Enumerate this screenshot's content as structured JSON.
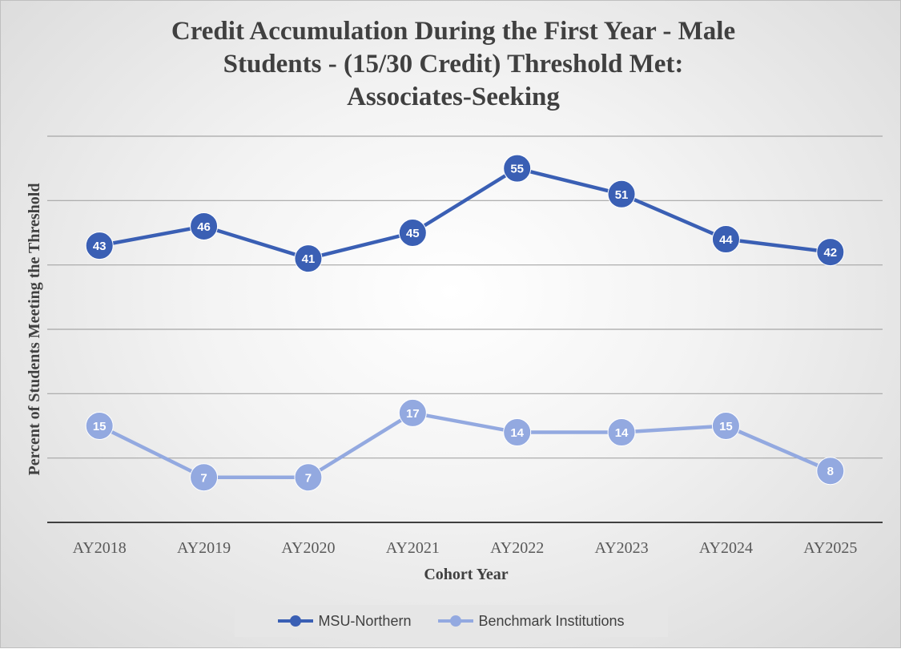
{
  "chart_data": {
    "type": "line",
    "title_lines": [
      "Credit Accumulation During the First Year - Male",
      "Students - (15/30 Credit) Threshold Met:",
      "Associates-Seeking"
    ],
    "xlabel": "Cohort Year",
    "ylabel": "Percent of Students Meeting the Threshold",
    "categories": [
      "AY2018",
      "AY2019",
      "AY2020",
      "AY2021",
      "AY2022",
      "AY2023",
      "AY2024",
      "AY2025"
    ],
    "ylim": [
      0,
      60
    ],
    "y_gridlines": [
      10,
      20,
      30,
      40,
      50,
      60
    ],
    "y_tick_labels_shown": false,
    "grid": true,
    "legend_position": "bottom",
    "series": [
      {
        "name": "MSU-Northern",
        "values": [
          43,
          46,
          41,
          45,
          55,
          51,
          44,
          42
        ],
        "color": "#3a5fb4"
      },
      {
        "name": "Benchmark Institutions",
        "values": [
          15,
          7,
          7,
          17,
          14,
          14,
          15,
          8
        ],
        "color": "#93a9e0"
      }
    ]
  }
}
